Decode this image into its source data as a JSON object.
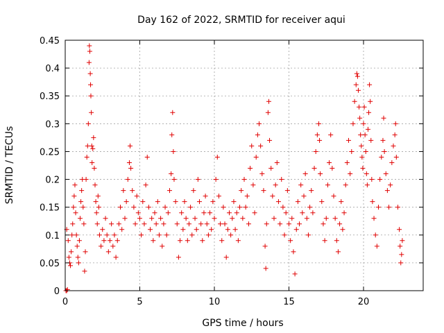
{
  "chart_data": {
    "type": "scatter",
    "title": "Day 162 of 2022, SRMTID for receiver aqui",
    "xlabel": "GPS time / hours",
    "ylabel": "SRMTID / TECUs",
    "xlim": [
      0,
      24
    ],
    "ylim": [
      0,
      0.45
    ],
    "xticks": [
      0,
      5,
      10,
      15,
      20
    ],
    "yticks": [
      0,
      0.05,
      0.1,
      0.15,
      0.2,
      0.25,
      0.3,
      0.35,
      0.4,
      0.45
    ],
    "xtick_labels": [
      "0",
      "5",
      "10",
      "15",
      "20"
    ],
    "ytick_labels": [
      "0",
      "0.05",
      "0.1",
      "0.15",
      "0.2",
      "0.25",
      "0.3",
      "0.35",
      "0.4",
      "0.45"
    ],
    "grid": true,
    "marker": "+",
    "color": "#e00000",
    "series": [
      {
        "name": "SRMTID",
        "points": [
          [
            0.05,
            0.0
          ],
          [
            0.1,
            0.0
          ],
          [
            0.15,
            0.002
          ],
          [
            0.1,
            0.11
          ],
          [
            0.2,
            0.09
          ],
          [
            0.25,
            0.06
          ],
          [
            0.3,
            0.05
          ],
          [
            0.35,
            0.045
          ],
          [
            0.4,
            0.07
          ],
          [
            0.45,
            0.1
          ],
          [
            0.5,
            0.12
          ],
          [
            0.55,
            0.15
          ],
          [
            0.6,
            0.17
          ],
          [
            0.65,
            0.19
          ],
          [
            0.7,
            0.14
          ],
          [
            0.75,
            0.1
          ],
          [
            0.8,
            0.08
          ],
          [
            0.85,
            0.06
          ],
          [
            0.9,
            0.05
          ],
          [
            0.95,
            0.09
          ],
          [
            1.0,
            0.13
          ],
          [
            1.05,
            0.16
          ],
          [
            1.1,
            0.18
          ],
          [
            1.15,
            0.2
          ],
          [
            1.2,
            0.15
          ],
          [
            1.25,
            0.12
          ],
          [
            1.3,
            0.035
          ],
          [
            1.35,
            0.07
          ],
          [
            1.4,
            0.2
          ],
          [
            1.45,
            0.24
          ],
          [
            1.5,
            0.26
          ],
          [
            1.55,
            0.3
          ],
          [
            1.6,
            0.41
          ],
          [
            1.62,
            0.44
          ],
          [
            1.65,
            0.43
          ],
          [
            1.68,
            0.39
          ],
          [
            1.7,
            0.37
          ],
          [
            1.72,
            0.35
          ],
          [
            1.75,
            0.32
          ],
          [
            1.78,
            0.26
          ],
          [
            1.8,
            0.23
          ],
          [
            1.85,
            0.255
          ],
          [
            1.9,
            0.275
          ],
          [
            1.95,
            0.22
          ],
          [
            2.0,
            0.19
          ],
          [
            2.05,
            0.16
          ],
          [
            2.1,
            0.14
          ],
          [
            2.15,
            0.12
          ],
          [
            2.2,
            0.17
          ],
          [
            2.25,
            0.15
          ],
          [
            2.3,
            0.1
          ],
          [
            2.4,
            0.08
          ],
          [
            2.5,
            0.11
          ],
          [
            2.6,
            0.09
          ],
          [
            2.7,
            0.13
          ],
          [
            2.8,
            0.1
          ],
          [
            2.9,
            0.07
          ],
          [
            3.0,
            0.09
          ],
          [
            3.1,
            0.12
          ],
          [
            3.2,
            0.08
          ],
          [
            3.3,
            0.1
          ],
          [
            3.4,
            0.06
          ],
          [
            3.5,
            0.09
          ],
          [
            3.6,
            0.12
          ],
          [
            3.7,
            0.15
          ],
          [
            3.8,
            0.11
          ],
          [
            3.9,
            0.18
          ],
          [
            4.0,
            0.13
          ],
          [
            4.1,
            0.16
          ],
          [
            4.2,
            0.2
          ],
          [
            4.3,
            0.23
          ],
          [
            4.35,
            0.26
          ],
          [
            4.4,
            0.22
          ],
          [
            4.5,
            0.18
          ],
          [
            4.6,
            0.15
          ],
          [
            4.7,
            0.12
          ],
          [
            4.8,
            0.17
          ],
          [
            4.9,
            0.14
          ],
          [
            5.0,
            0.13
          ],
          [
            5.1,
            0.1
          ],
          [
            5.2,
            0.16
          ],
          [
            5.3,
            0.12
          ],
          [
            5.4,
            0.19
          ],
          [
            5.5,
            0.24
          ],
          [
            5.6,
            0.15
          ],
          [
            5.7,
            0.11
          ],
          [
            5.8,
            0.13
          ],
          [
            5.9,
            0.09
          ],
          [
            6.0,
            0.14
          ],
          [
            6.1,
            0.12
          ],
          [
            6.2,
            0.16
          ],
          [
            6.3,
            0.1
          ],
          [
            6.4,
            0.13
          ],
          [
            6.5,
            0.08
          ],
          [
            6.6,
            0.12
          ],
          [
            6.7,
            0.15
          ],
          [
            6.8,
            0.1
          ],
          [
            6.9,
            0.14
          ],
          [
            7.0,
            0.18
          ],
          [
            7.1,
            0.21
          ],
          [
            7.15,
            0.28
          ],
          [
            7.2,
            0.32
          ],
          [
            7.25,
            0.25
          ],
          [
            7.3,
            0.2
          ],
          [
            7.4,
            0.16
          ],
          [
            7.5,
            0.12
          ],
          [
            7.6,
            0.06
          ],
          [
            7.7,
            0.09
          ],
          [
            7.8,
            0.14
          ],
          [
            7.9,
            0.11
          ],
          [
            8.0,
            0.16
          ],
          [
            8.1,
            0.13
          ],
          [
            8.2,
            0.09
          ],
          [
            8.3,
            0.12
          ],
          [
            8.4,
            0.15
          ],
          [
            8.5,
            0.1
          ],
          [
            8.6,
            0.18
          ],
          [
            8.7,
            0.13
          ],
          [
            8.8,
            0.11
          ],
          [
            8.9,
            0.2
          ],
          [
            9.0,
            0.16
          ],
          [
            9.1,
            0.12
          ],
          [
            9.2,
            0.09
          ],
          [
            9.3,
            0.14
          ],
          [
            9.4,
            0.17
          ],
          [
            9.5,
            0.12
          ],
          [
            9.6,
            0.1
          ],
          [
            9.7,
            0.14
          ],
          [
            9.8,
            0.11
          ],
          [
            9.9,
            0.16
          ],
          [
            10.0,
            0.13
          ],
          [
            10.1,
            0.2
          ],
          [
            10.2,
            0.24
          ],
          [
            10.3,
            0.17
          ],
          [
            10.4,
            0.12
          ],
          [
            10.5,
            0.09
          ],
          [
            10.6,
            0.15
          ],
          [
            10.7,
            0.12
          ],
          [
            10.8,
            0.06
          ],
          [
            10.9,
            0.11
          ],
          [
            11.0,
            0.14
          ],
          [
            11.1,
            0.1
          ],
          [
            11.2,
            0.13
          ],
          [
            11.3,
            0.16
          ],
          [
            11.4,
            0.11
          ],
          [
            11.5,
            0.14
          ],
          [
            11.6,
            0.09
          ],
          [
            11.7,
            0.15
          ],
          [
            11.8,
            0.18
          ],
          [
            11.9,
            0.13
          ],
          [
            12.0,
            0.2
          ],
          [
            12.1,
            0.15
          ],
          [
            12.2,
            0.17
          ],
          [
            12.3,
            0.12
          ],
          [
            12.4,
            0.22
          ],
          [
            12.5,
            0.26
          ],
          [
            12.6,
            0.19
          ],
          [
            12.7,
            0.14
          ],
          [
            12.8,
            0.24
          ],
          [
            12.9,
            0.28
          ],
          [
            13.0,
            0.3
          ],
          [
            13.1,
            0.26
          ],
          [
            13.2,
            0.21
          ],
          [
            13.3,
            0.18
          ],
          [
            13.4,
            0.08
          ],
          [
            13.45,
            0.04
          ],
          [
            13.5,
            0.12
          ],
          [
            13.6,
            0.32
          ],
          [
            13.65,
            0.34
          ],
          [
            13.7,
            0.27
          ],
          [
            13.8,
            0.22
          ],
          [
            13.9,
            0.17
          ],
          [
            14.0,
            0.13
          ],
          [
            14.1,
            0.19
          ],
          [
            14.2,
            0.23
          ],
          [
            14.3,
            0.16
          ],
          [
            14.4,
            0.12
          ],
          [
            14.5,
            0.2
          ],
          [
            14.6,
            0.15
          ],
          [
            14.7,
            0.1
          ],
          [
            14.8,
            0.14
          ],
          [
            14.9,
            0.18
          ],
          [
            15.0,
            0.12
          ],
          [
            15.1,
            0.09
          ],
          [
            15.2,
            0.13
          ],
          [
            15.3,
            0.07
          ],
          [
            15.4,
            0.03
          ],
          [
            15.5,
            0.11
          ],
          [
            15.6,
            0.16
          ],
          [
            15.7,
            0.12
          ],
          [
            15.8,
            0.19
          ],
          [
            15.9,
            0.14
          ],
          [
            16.0,
            0.17
          ],
          [
            16.1,
            0.21
          ],
          [
            16.2,
            0.13
          ],
          [
            16.3,
            0.1
          ],
          [
            16.4,
            0.15
          ],
          [
            16.5,
            0.18
          ],
          [
            16.6,
            0.14
          ],
          [
            16.7,
            0.22
          ],
          [
            16.8,
            0.25
          ],
          [
            16.9,
            0.28
          ],
          [
            17.0,
            0.3
          ],
          [
            17.05,
            0.27
          ],
          [
            17.1,
            0.21
          ],
          [
            17.2,
            0.16
          ],
          [
            17.3,
            0.12
          ],
          [
            17.4,
            0.09
          ],
          [
            17.5,
            0.13
          ],
          [
            17.6,
            0.19
          ],
          [
            17.7,
            0.23
          ],
          [
            17.8,
            0.28
          ],
          [
            17.9,
            0.22
          ],
          [
            18.0,
            0.17
          ],
          [
            18.1,
            0.13
          ],
          [
            18.2,
            0.09
          ],
          [
            18.3,
            0.07
          ],
          [
            18.4,
            0.12
          ],
          [
            18.5,
            0.16
          ],
          [
            18.6,
            0.11
          ],
          [
            18.7,
            0.14
          ],
          [
            18.8,
            0.19
          ],
          [
            18.9,
            0.23
          ],
          [
            19.0,
            0.27
          ],
          [
            19.1,
            0.21
          ],
          [
            19.2,
            0.25
          ],
          [
            19.3,
            0.3
          ],
          [
            19.4,
            0.34
          ],
          [
            19.5,
            0.37
          ],
          [
            19.55,
            0.39
          ],
          [
            19.6,
            0.385
          ],
          [
            19.65,
            0.36
          ],
          [
            19.7,
            0.33
          ],
          [
            19.75,
            0.31
          ],
          [
            19.8,
            0.28
          ],
          [
            19.85,
            0.26
          ],
          [
            19.9,
            0.24
          ],
          [
            19.95,
            0.22
          ],
          [
            20.0,
            0.3
          ],
          [
            20.05,
            0.33
          ],
          [
            20.1,
            0.28
          ],
          [
            20.15,
            0.25
          ],
          [
            20.2,
            0.21
          ],
          [
            20.25,
            0.19
          ],
          [
            20.3,
            0.29
          ],
          [
            20.35,
            0.32
          ],
          [
            20.4,
            0.37
          ],
          [
            20.45,
            0.34
          ],
          [
            20.5,
            0.27
          ],
          [
            20.55,
            0.2
          ],
          [
            20.6,
            0.16
          ],
          [
            20.7,
            0.13
          ],
          [
            20.8,
            0.1
          ],
          [
            20.9,
            0.08
          ],
          [
            21.0,
            0.15
          ],
          [
            21.1,
            0.2
          ],
          [
            21.2,
            0.24
          ],
          [
            21.3,
            0.27
          ],
          [
            21.35,
            0.31
          ],
          [
            21.4,
            0.25
          ],
          [
            21.5,
            0.21
          ],
          [
            21.6,
            0.18
          ],
          [
            21.7,
            0.15
          ],
          [
            21.8,
            0.19
          ],
          [
            21.9,
            0.23
          ],
          [
            22.0,
            0.26
          ],
          [
            22.1,
            0.28
          ],
          [
            22.15,
            0.3
          ],
          [
            22.2,
            0.24
          ],
          [
            22.3,
            0.15
          ],
          [
            22.4,
            0.11
          ],
          [
            22.45,
            0.08
          ],
          [
            22.5,
            0.05
          ],
          [
            22.55,
            0.065
          ],
          [
            22.6,
            0.09
          ]
        ]
      }
    ]
  }
}
